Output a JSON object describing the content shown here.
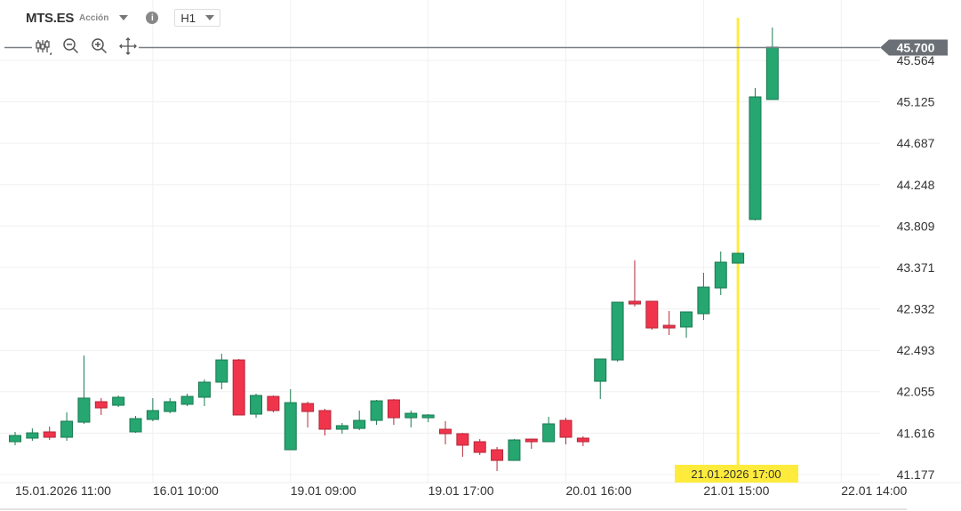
{
  "header": {
    "symbol": "MTS.ES",
    "asset_type": "Acción",
    "timeframe": "H1",
    "info_icon": "i"
  },
  "toolbar": {
    "icons": [
      "candlestick-icon",
      "zoom-out-icon",
      "zoom-in-icon",
      "move-icon"
    ]
  },
  "colors": {
    "up": "#26a671",
    "down": "#f0344c",
    "grid": "#f0f0f0",
    "crosshair": "#ffeb3b",
    "price_line": "#7a7f84",
    "price_tag": "#6b7076"
  },
  "current_price": "45.700",
  "crosshair_label": "21.01.2026 17:00",
  "chart_data": {
    "type": "candlestick",
    "ylim": [
      41.177,
      45.564
    ],
    "y_ticks": [
      "45.564",
      "45.125",
      "44.687",
      "44.248",
      "43.809",
      "43.371",
      "42.932",
      "42.493",
      "42.055",
      "41.616",
      "41.177"
    ],
    "x_ticks": [
      {
        "label": "15.01.2026 11:00",
        "index": 0
      },
      {
        "label": "16.01 10:00",
        "index": 8
      },
      {
        "label": "19.01 09:00",
        "index": 16
      },
      {
        "label": "19.01 17:00",
        "index": 24
      },
      {
        "label": "20.01 16:00",
        "index": 32
      },
      {
        "label": "21.01 15:00",
        "index": 40
      },
      {
        "label": "22.01 14:00",
        "index": 48
      }
    ],
    "crosshair_index": 42,
    "ohlc": [
      [
        41.525,
        41.629,
        41.488,
        41.591
      ],
      [
        41.563,
        41.666,
        41.535,
        41.619
      ],
      [
        41.629,
        41.685,
        41.544,
        41.572
      ],
      [
        41.572,
        41.836,
        41.535,
        41.742
      ],
      [
        41.732,
        42.438,
        41.714,
        41.987
      ],
      [
        41.949,
        41.987,
        41.808,
        41.883
      ],
      [
        41.911,
        42.015,
        41.892,
        41.996
      ],
      [
        41.629,
        41.798,
        41.619,
        41.77
      ],
      [
        41.761,
        41.987,
        41.742,
        41.855
      ],
      [
        41.845,
        41.987,
        41.826,
        41.949
      ],
      [
        41.921,
        42.034,
        41.902,
        42.005
      ],
      [
        41.996,
        42.184,
        41.902,
        42.156
      ],
      [
        42.156,
        42.457,
        42.081,
        42.391
      ],
      [
        42.391,
        42.401,
        41.808,
        41.808
      ],
      [
        41.817,
        42.034,
        41.779,
        42.015
      ],
      [
        42.005,
        42.015,
        41.836,
        41.855
      ],
      [
        41.44,
        42.081,
        41.44,
        41.939
      ],
      [
        41.93,
        41.949,
        41.676,
        41.845
      ],
      [
        41.855,
        41.874,
        41.591,
        41.657
      ],
      [
        41.657,
        41.723,
        41.61,
        41.695
      ],
      [
        41.666,
        41.855,
        41.648,
        41.751
      ],
      [
        41.751,
        41.968,
        41.704,
        41.958
      ],
      [
        41.968,
        41.977,
        41.704,
        41.779
      ],
      [
        41.779,
        41.855,
        41.676,
        41.826
      ],
      [
        41.779,
        41.817,
        41.732,
        41.808
      ],
      [
        41.657,
        41.742,
        41.497,
        41.61
      ],
      [
        41.61,
        41.619,
        41.365,
        41.488
      ],
      [
        41.525,
        41.553,
        41.384,
        41.412
      ],
      [
        41.44,
        41.469,
        41.215,
        41.327
      ],
      [
        41.327,
        41.553,
        41.327,
        41.544
      ],
      [
        41.553,
        41.553,
        41.45,
        41.525
      ],
      [
        41.525,
        41.789,
        41.525,
        41.714
      ],
      [
        41.751,
        41.779,
        41.497,
        41.572
      ],
      [
        41.563,
        41.582,
        41.478,
        41.525
      ],
      [
        42.165,
        42.401,
        41.977,
        42.401
      ],
      [
        42.391,
        43.003,
        42.373,
        43.003
      ],
      [
        43.013,
        43.446,
        42.956,
        42.984
      ],
      [
        43.013,
        43.013,
        42.711,
        42.73
      ],
      [
        42.758,
        42.909,
        42.655,
        42.73
      ],
      [
        42.74,
        42.9,
        42.627,
        42.9
      ],
      [
        42.881,
        43.314,
        42.815,
        43.163
      ],
      [
        43.154,
        43.54,
        43.079,
        43.427
      ],
      [
        43.417,
        43.521,
        43.417,
        43.521
      ],
      [
        43.879,
        45.272,
        43.869,
        45.178
      ],
      [
        45.15,
        45.912,
        45.15,
        45.705
      ]
    ]
  }
}
